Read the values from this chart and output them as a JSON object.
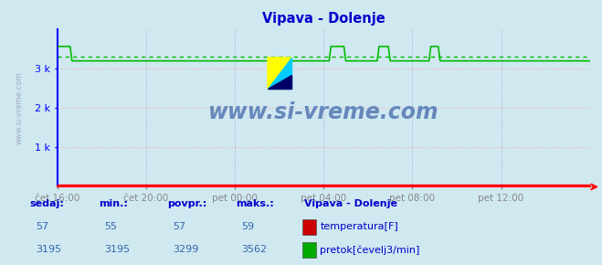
{
  "title": "Vipava - Dolenje",
  "title_color": "#0000cc",
  "bg_color": "#d0e8f0",
  "plot_bg_color": "#d0e8f0",
  "x_labels": [
    "čet 16:00",
    "čet 20:00",
    "pet 00:00",
    "pet 04:00",
    "pet 08:00",
    "pet 12:00"
  ],
  "x_ticks": [
    0,
    48,
    96,
    144,
    192,
    240
  ],
  "x_max": 288,
  "y_min": 0,
  "y_max": 4000,
  "y_ticks": [
    1000,
    2000,
    3000
  ],
  "y_tick_labels": [
    "1 k",
    "2 k",
    "3 k"
  ],
  "grid_color_h": "#ffaaaa",
  "grid_color_v": "#aaaacc",
  "axis_color_left": "#0000ff",
  "axis_color_bottom": "#ff0000",
  "temp_color": "#ff0000",
  "flow_color": "#00bb00",
  "avg_flow_color": "#00bb00",
  "flow_base": 3195,
  "flow_avg": 3299,
  "flow_max": 3562,
  "watermark": "www.si-vreme.com",
  "watermark_color": "#6688bb",
  "footer_color": "#0000cc",
  "label_color": "#3366aa",
  "sedaj_label": "sedaj:",
  "min_label": "min.:",
  "povpr_label": "povpr.:",
  "maks_label": "maks.:",
  "station_label": "Vipava - Dolenje",
  "legend_temp": "temperatura[F]",
  "legend_flow": "pretok[čevelj3/min]",
  "num_points": 289,
  "footer_values_temp": [
    "57",
    "55",
    "57",
    "59"
  ],
  "footer_values_flow": [
    "3195",
    "3195",
    "3299",
    "3562"
  ],
  "spike_positions": [
    [
      0,
      8
    ],
    [
      148,
      156
    ],
    [
      174,
      180
    ],
    [
      202,
      207
    ]
  ],
  "spike_value": 3562,
  "base_flow": 3195
}
